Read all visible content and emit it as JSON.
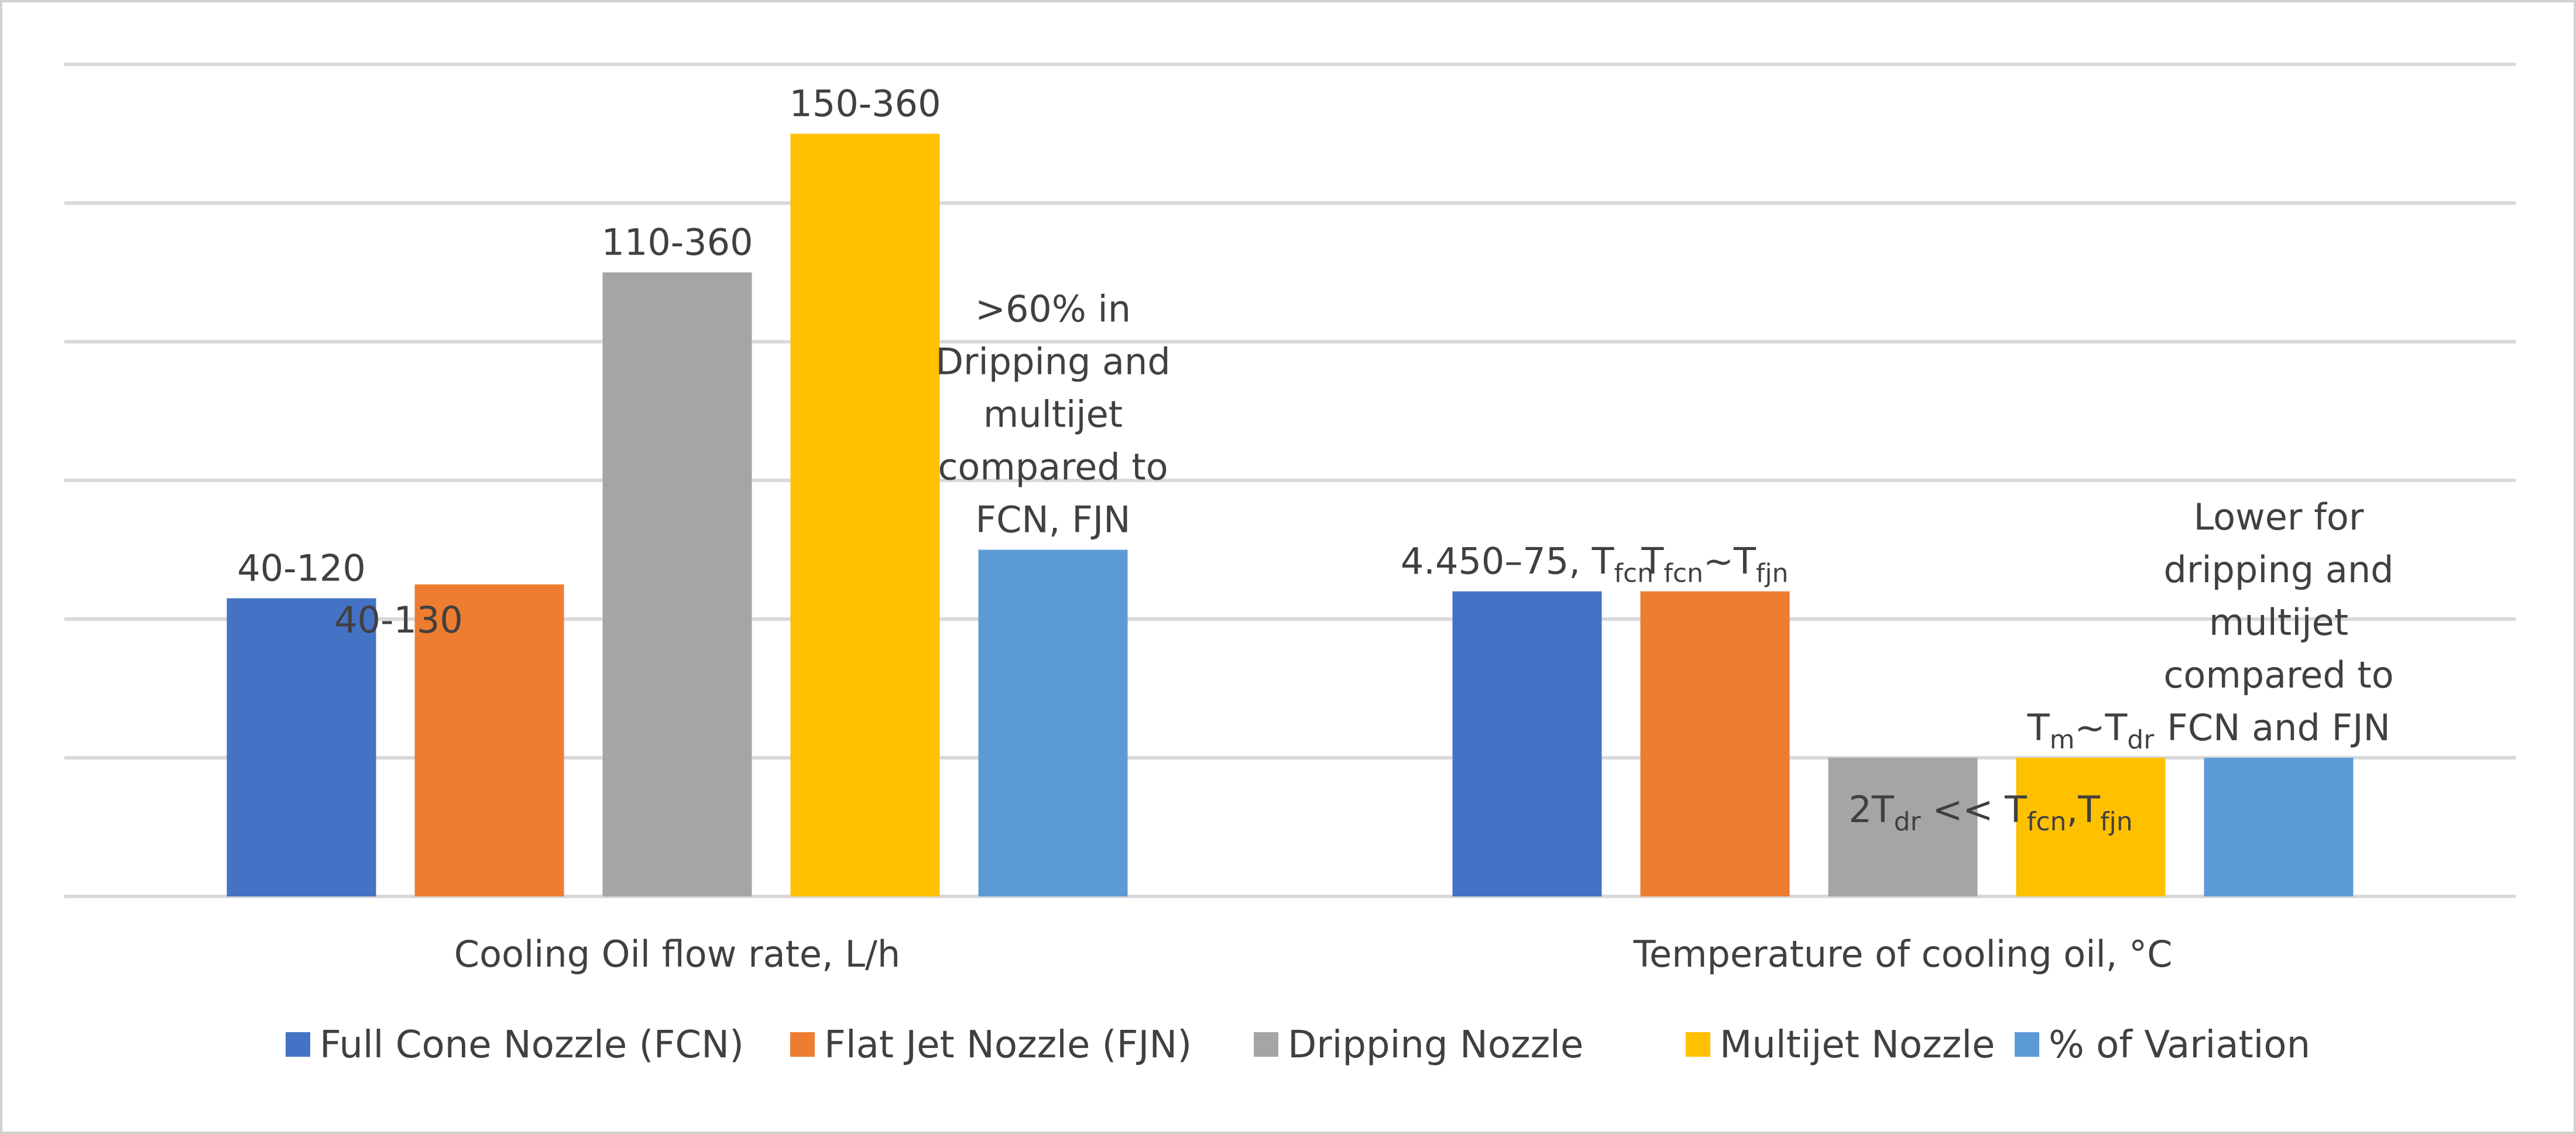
{
  "chart_data": {
    "type": "bar",
    "title": "",
    "xlabel": "",
    "ylabel": "",
    "ylim": [
      0,
      6
    ],
    "gridlines": [
      1,
      2,
      3,
      4,
      5,
      6
    ],
    "grid": true,
    "legend_position": "bottom",
    "categories": [
      "Cooling Oil flow rate, L/h",
      "Temperature of cooling oil, °C"
    ],
    "series": [
      {
        "name": "Full Cone Nozzle (FCN)",
        "color": "#4472C4",
        "values": [
          2.15,
          2.2
        ],
        "labels": [
          {
            "lines": [
              [
                {
                  "t": "40-120"
                }
              ]
            ]
          },
          {
            "lines": [
              [
                {
                  "t": "4.450–75, T"
                },
                {
                  "t": "fcn",
                  "sub": true
                }
              ]
            ]
          }
        ]
      },
      {
        "name": "Flat Jet Nozzle (FJN)",
        "color": "#ED7D31",
        "values": [
          2.25,
          2.2
        ],
        "labels": [
          {
            "lines": [
              [
                {
                  "t": "40-130"
                }
              ]
            ]
          },
          {
            "lines": [
              [
                {
                  "t": "T"
                },
                {
                  "t": "fcn",
                  "sub": true
                },
                {
                  "t": "~T"
                },
                {
                  "t": "fjn",
                  "sub": true
                }
              ]
            ]
          }
        ]
      },
      {
        "name": "Dripping Nozzle",
        "color": "#A5A5A5",
        "values": [
          4.5,
          1.0
        ],
        "labels": [
          {
            "lines": [
              [
                {
                  "t": "110-360"
                }
              ]
            ]
          },
          {
            "lines": [
              [
                {
                  "t": "2T"
                },
                {
                  "t": "dr",
                  "sub": true
                },
                {
                  "t": " << T"
                },
                {
                  "t": "fcn",
                  "sub": true
                },
                {
                  "t": ",T"
                },
                {
                  "t": "fjn",
                  "sub": true
                }
              ]
            ]
          }
        ]
      },
      {
        "name": "Multijet Nozzle",
        "color": "#FFC000",
        "values": [
          5.5,
          1.0
        ],
        "labels": [
          {
            "lines": [
              [
                {
                  "t": "150-360"
                }
              ]
            ]
          },
          {
            "lines": [
              [
                {
                  "t": "T"
                },
                {
                  "t": "m",
                  "sub": true
                },
                {
                  "t": "~T"
                },
                {
                  "t": "dr",
                  "sub": true
                }
              ]
            ]
          }
        ]
      },
      {
        "name": "% of Variation",
        "color": "#5B9BD5",
        "values": [
          2.5,
          1.0
        ],
        "labels": [
          {
            "lines": [
              [
                {
                  "t": ">60% in"
                }
              ],
              [
                {
                  "t": "Dripping and"
                }
              ],
              [
                {
                  "t": "multijet"
                }
              ],
              [
                {
                  "t": "compared to"
                }
              ],
              [
                {
                  "t": "FCN, FJN"
                }
              ]
            ]
          },
          {
            "lines": [
              [
                {
                  "t": "Lower for"
                }
              ],
              [
                {
                  "t": "dripping and"
                }
              ],
              [
                {
                  "t": "multijet"
                }
              ],
              [
                {
                  "t": "compared to"
                }
              ],
              [
                {
                  "t": "FCN and FJN"
                }
              ]
            ]
          }
        ]
      }
    ]
  }
}
